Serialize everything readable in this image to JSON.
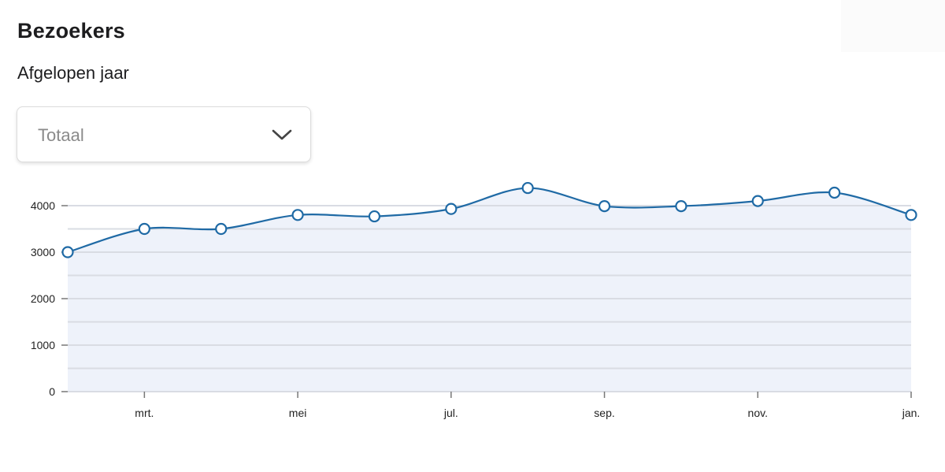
{
  "header": {
    "title": "Bezoekers",
    "subtitle": "Afgelopen jaar"
  },
  "filter": {
    "selected": "Totaal",
    "icon": "chevron-down-icon"
  },
  "chart_data": {
    "type": "area",
    "title": "",
    "xlabel": "",
    "ylabel": "",
    "ylim": [
      0,
      4500
    ],
    "yticks": [
      0,
      1000,
      2000,
      3000,
      4000
    ],
    "x_tick_labels": [
      "mrt.",
      "mei",
      "jul.",
      "sep.",
      "nov.",
      "jan."
    ],
    "grid": true,
    "series": [
      {
        "values": [
          3000,
          3500,
          3500,
          3800,
          3770,
          3930,
          4380,
          3990,
          3990,
          4100,
          4280,
          3800
        ]
      }
    ],
    "colors": {
      "line": "#1f6aa5",
      "fill": "#eef2fa",
      "grid": "#d9dce3",
      "marker_fill": "#ffffff"
    }
  }
}
